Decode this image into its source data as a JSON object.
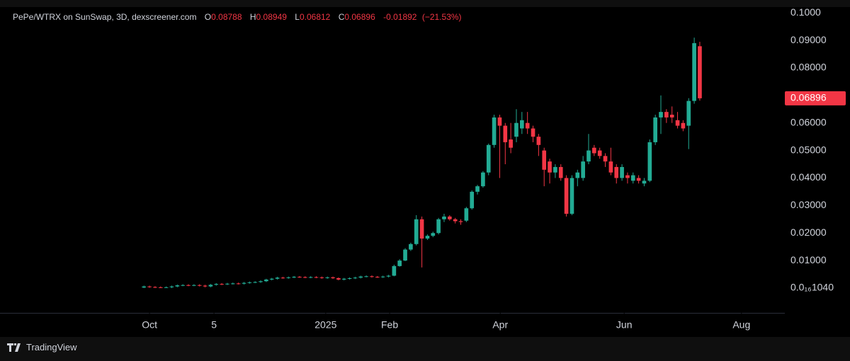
{
  "chart_data": {
    "type": "candlestick",
    "title": "PePe/WTRX on SunSwap, 3D, dexscreener.com",
    "ohlc_labels": [
      "O",
      "H",
      "L",
      "C"
    ],
    "change": -0.01892,
    "change_pct_label": "(−21.53%)",
    "up_color": "#22ab94",
    "down_color": "#f23645",
    "open": [
      0.0002,
      0.0006,
      0.0004,
      0.0003,
      0.0002,
      0.0003,
      0.0006,
      0.001,
      0.0011,
      0.001,
      0.0011,
      0.0009,
      0.0006,
      0.0012,
      0.0015,
      0.0014,
      0.0016,
      0.0017,
      0.0016,
      0.0019,
      0.0021,
      0.0022,
      0.0025,
      0.0031,
      0.0034,
      0.0038,
      0.0037,
      0.0039,
      0.0041,
      0.004,
      0.0039,
      0.004,
      0.0039,
      0.0037,
      0.0039,
      0.0036,
      0.0031,
      0.0034,
      0.0036,
      0.0038,
      0.0042,
      0.0043,
      0.0041,
      0.004,
      0.0042,
      0.0045,
      0.008,
      0.01,
      0.014,
      0.016,
      0.025,
      0.018,
      0.019,
      0.02,
      0.025,
      0.026,
      0.025,
      0.0243,
      0.0245,
      0.029,
      0.035,
      0.037,
      0.042,
      0.052,
      0.062,
      0.059,
      0.054,
      0.055,
      0.058,
      0.06,
      0.058,
      0.055,
      0.05,
      0.046,
      0.042,
      0.044,
      0.04,
      0.027,
      0.04,
      0.04,
      0.046,
      0.051,
      0.05,
      0.048,
      0.046,
      0.044,
      0.04,
      0.041,
      0.039,
      0.04,
      0.038,
      0.039,
      0.053,
      0.062,
      0.064,
      0.063,
      0.061,
      0.06,
      0.059,
      0.068,
      0.08788
    ],
    "high": [
      0.0009,
      0.0009,
      0.0007,
      0.0006,
      0.0006,
      0.0009,
      0.0013,
      0.0014,
      0.0014,
      0.0014,
      0.0014,
      0.0012,
      0.0015,
      0.0018,
      0.0018,
      0.0019,
      0.002,
      0.002,
      0.0022,
      0.0024,
      0.0025,
      0.0028,
      0.0034,
      0.0037,
      0.0041,
      0.0041,
      0.0042,
      0.0044,
      0.0044,
      0.0043,
      0.0043,
      0.0043,
      0.0042,
      0.0042,
      0.0042,
      0.0039,
      0.0037,
      0.0039,
      0.0041,
      0.0045,
      0.0046,
      0.0046,
      0.0044,
      0.0045,
      0.0048,
      0.0085,
      0.0105,
      0.0145,
      0.0165,
      0.0265,
      0.026,
      0.0195,
      0.0205,
      0.0255,
      0.027,
      0.0265,
      0.0255,
      0.025,
      0.0295,
      0.0355,
      0.0375,
      0.0425,
      0.0525,
      0.063,
      0.063,
      0.06,
      0.06,
      0.065,
      0.064,
      0.064,
      0.059,
      0.056,
      0.051,
      0.047,
      0.045,
      0.045,
      0.041,
      0.041,
      0.043,
      0.048,
      0.056,
      0.052,
      0.051,
      0.049,
      0.051,
      0.045,
      0.045,
      0.042,
      0.042,
      0.041,
      0.04,
      0.054,
      0.063,
      0.07,
      0.065,
      0.066,
      0.064,
      0.061,
      0.069,
      0.091,
      0.08949
    ],
    "low": [
      0.0,
      0.0001,
      0.0,
      0.0,
      0.0,
      0.0,
      0.0003,
      0.0007,
      0.0007,
      0.0007,
      0.0006,
      0.0003,
      0.0003,
      0.0009,
      0.0011,
      0.0011,
      0.0013,
      0.0013,
      0.0013,
      0.0016,
      0.0018,
      0.0019,
      0.0022,
      0.0028,
      0.0031,
      0.0034,
      0.0034,
      0.0036,
      0.0037,
      0.0036,
      0.0036,
      0.0036,
      0.0034,
      0.0034,
      0.0033,
      0.0028,
      0.0028,
      0.0031,
      0.0033,
      0.0035,
      0.0039,
      0.0038,
      0.0037,
      0.0037,
      0.0039,
      0.0043,
      0.0078,
      0.0098,
      0.0135,
      0.0155,
      0.0075,
      0.0175,
      0.0185,
      0.0195,
      0.024,
      0.0245,
      0.0235,
      0.023,
      0.024,
      0.0285,
      0.034,
      0.0365,
      0.041,
      0.051,
      0.04,
      0.045,
      0.049,
      0.053,
      0.056,
      0.056,
      0.053,
      0.048,
      0.037,
      0.038,
      0.04,
      0.039,
      0.026,
      0.0265,
      0.037,
      0.039,
      0.045,
      0.048,
      0.047,
      0.044,
      0.041,
      0.038,
      0.039,
      0.038,
      0.038,
      0.038,
      0.037,
      0.0385,
      0.052,
      0.056,
      0.06,
      0.06,
      0.058,
      0.057,
      0.0505,
      0.067,
      0.06812
    ],
    "close": [
      0.0006,
      0.0004,
      0.0003,
      0.0002,
      0.0003,
      0.0006,
      0.001,
      0.0011,
      0.001,
      0.0011,
      0.0009,
      0.0006,
      0.0012,
      0.0015,
      0.0014,
      0.0016,
      0.0017,
      0.0016,
      0.0019,
      0.0021,
      0.0022,
      0.0025,
      0.0031,
      0.0034,
      0.0038,
      0.0037,
      0.0039,
      0.0041,
      0.004,
      0.0039,
      0.004,
      0.0039,
      0.0037,
      0.0039,
      0.0036,
      0.0031,
      0.0034,
      0.0036,
      0.0038,
      0.0042,
      0.0043,
      0.0041,
      0.004,
      0.0042,
      0.0045,
      0.008,
      0.01,
      0.014,
      0.016,
      0.025,
      0.018,
      0.019,
      0.02,
      0.025,
      0.026,
      0.025,
      0.0243,
      0.024,
      0.029,
      0.035,
      0.037,
      0.042,
      0.052,
      0.062,
      0.059,
      0.053,
      0.051,
      0.06,
      0.061,
      0.058,
      0.055,
      0.052,
      0.043,
      0.042,
      0.044,
      0.04,
      0.027,
      0.04,
      0.042,
      0.046,
      0.05,
      0.049,
      0.048,
      0.046,
      0.042,
      0.04,
      0.044,
      0.04,
      0.041,
      0.039,
      0.039,
      0.053,
      0.062,
      0.064,
      0.062,
      0.062,
      0.059,
      0.058,
      0.068,
      0.089,
      0.06896
    ],
    "xlim": [
      -25.9,
      115.3
    ],
    "xticks": [
      {
        "value": 1.0,
        "label": "Oct"
      },
      {
        "value": 12.6,
        "label": "5"
      },
      {
        "value": 32.7,
        "label": "2025"
      },
      {
        "value": 44.2,
        "label": "Feb"
      },
      {
        "value": 64.1,
        "label": "Apr"
      },
      {
        "value": 86.4,
        "label": "Jun"
      },
      {
        "value": 107.5,
        "label": "Aug"
      }
    ],
    "ylim": [
      -0.009,
      0.1021
    ],
    "yticks": [
      {
        "value": 0.1,
        "label": "0.1000"
      },
      {
        "value": 0.09,
        "label": "0.09000"
      },
      {
        "value": 0.08,
        "label": "0.08000"
      },
      {
        "value": 0.06,
        "label": "0.06000"
      },
      {
        "value": 0.05,
        "label": "0.05000"
      },
      {
        "value": 0.04,
        "label": "0.04000"
      },
      {
        "value": 0.03,
        "label": "0.03000"
      },
      {
        "value": 0.02,
        "label": "0.02000"
      },
      {
        "value": 0.01,
        "label": "0.01000"
      },
      {
        "value": 1.04e-17,
        "label": "0.0₁₆1040"
      }
    ],
    "footer": "TradingView"
  }
}
